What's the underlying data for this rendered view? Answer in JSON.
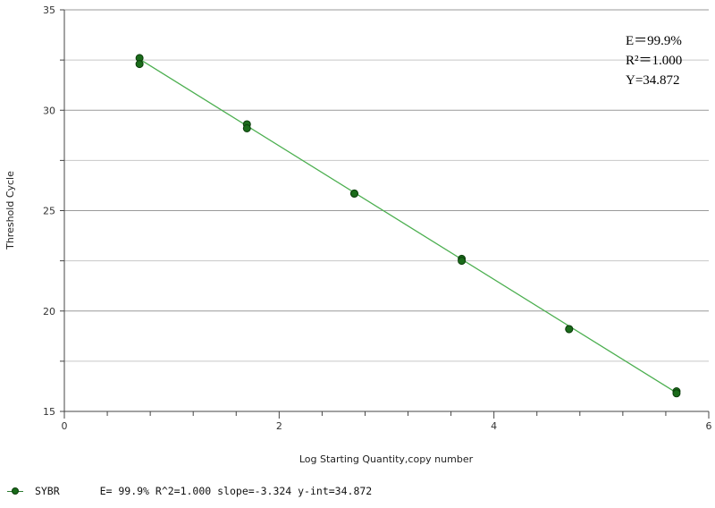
{
  "chart_data": {
    "type": "scatter",
    "title": "",
    "xlabel": "Log Starting Quantity,copy number",
    "ylabel": "Threshold Cycle",
    "xlim": [
      0,
      6
    ],
    "ylim": [
      15,
      35
    ],
    "x_ticks": [
      "0",
      "2",
      "4",
      "6"
    ],
    "y_ticks": [
      "15",
      "20",
      "25",
      "30",
      "35"
    ],
    "grid": "horizontal",
    "colors": {
      "points": "#1a6b1a",
      "point_edge": "#0b3d0b",
      "line": "#4caf50",
      "grid": "#b0b0b0"
    },
    "series": [
      {
        "name": "SYBR",
        "points": [
          [
            0.7,
            32.6
          ],
          [
            0.7,
            32.3
          ],
          [
            1.7,
            29.3
          ],
          [
            1.7,
            29.1
          ],
          [
            2.7,
            25.85
          ],
          [
            2.7,
            25.85
          ],
          [
            3.7,
            22.6
          ],
          [
            3.7,
            22.5
          ],
          [
            4.7,
            19.1
          ],
          [
            4.7,
            19.1
          ],
          [
            5.7,
            16.0
          ],
          [
            5.7,
            15.9
          ]
        ]
      }
    ],
    "fit_line": {
      "slope": -3.324,
      "intercept": 34.872,
      "x_range": [
        0.7,
        5.7
      ]
    },
    "annotations": [
      "E＝99.9%",
      "R²＝1.000",
      "Y=34.872"
    ]
  },
  "legend": {
    "series_name": "SYBR",
    "stats": "E= 99.9% R^2=1.000 slope=-3.324 y-int=34.872"
  }
}
